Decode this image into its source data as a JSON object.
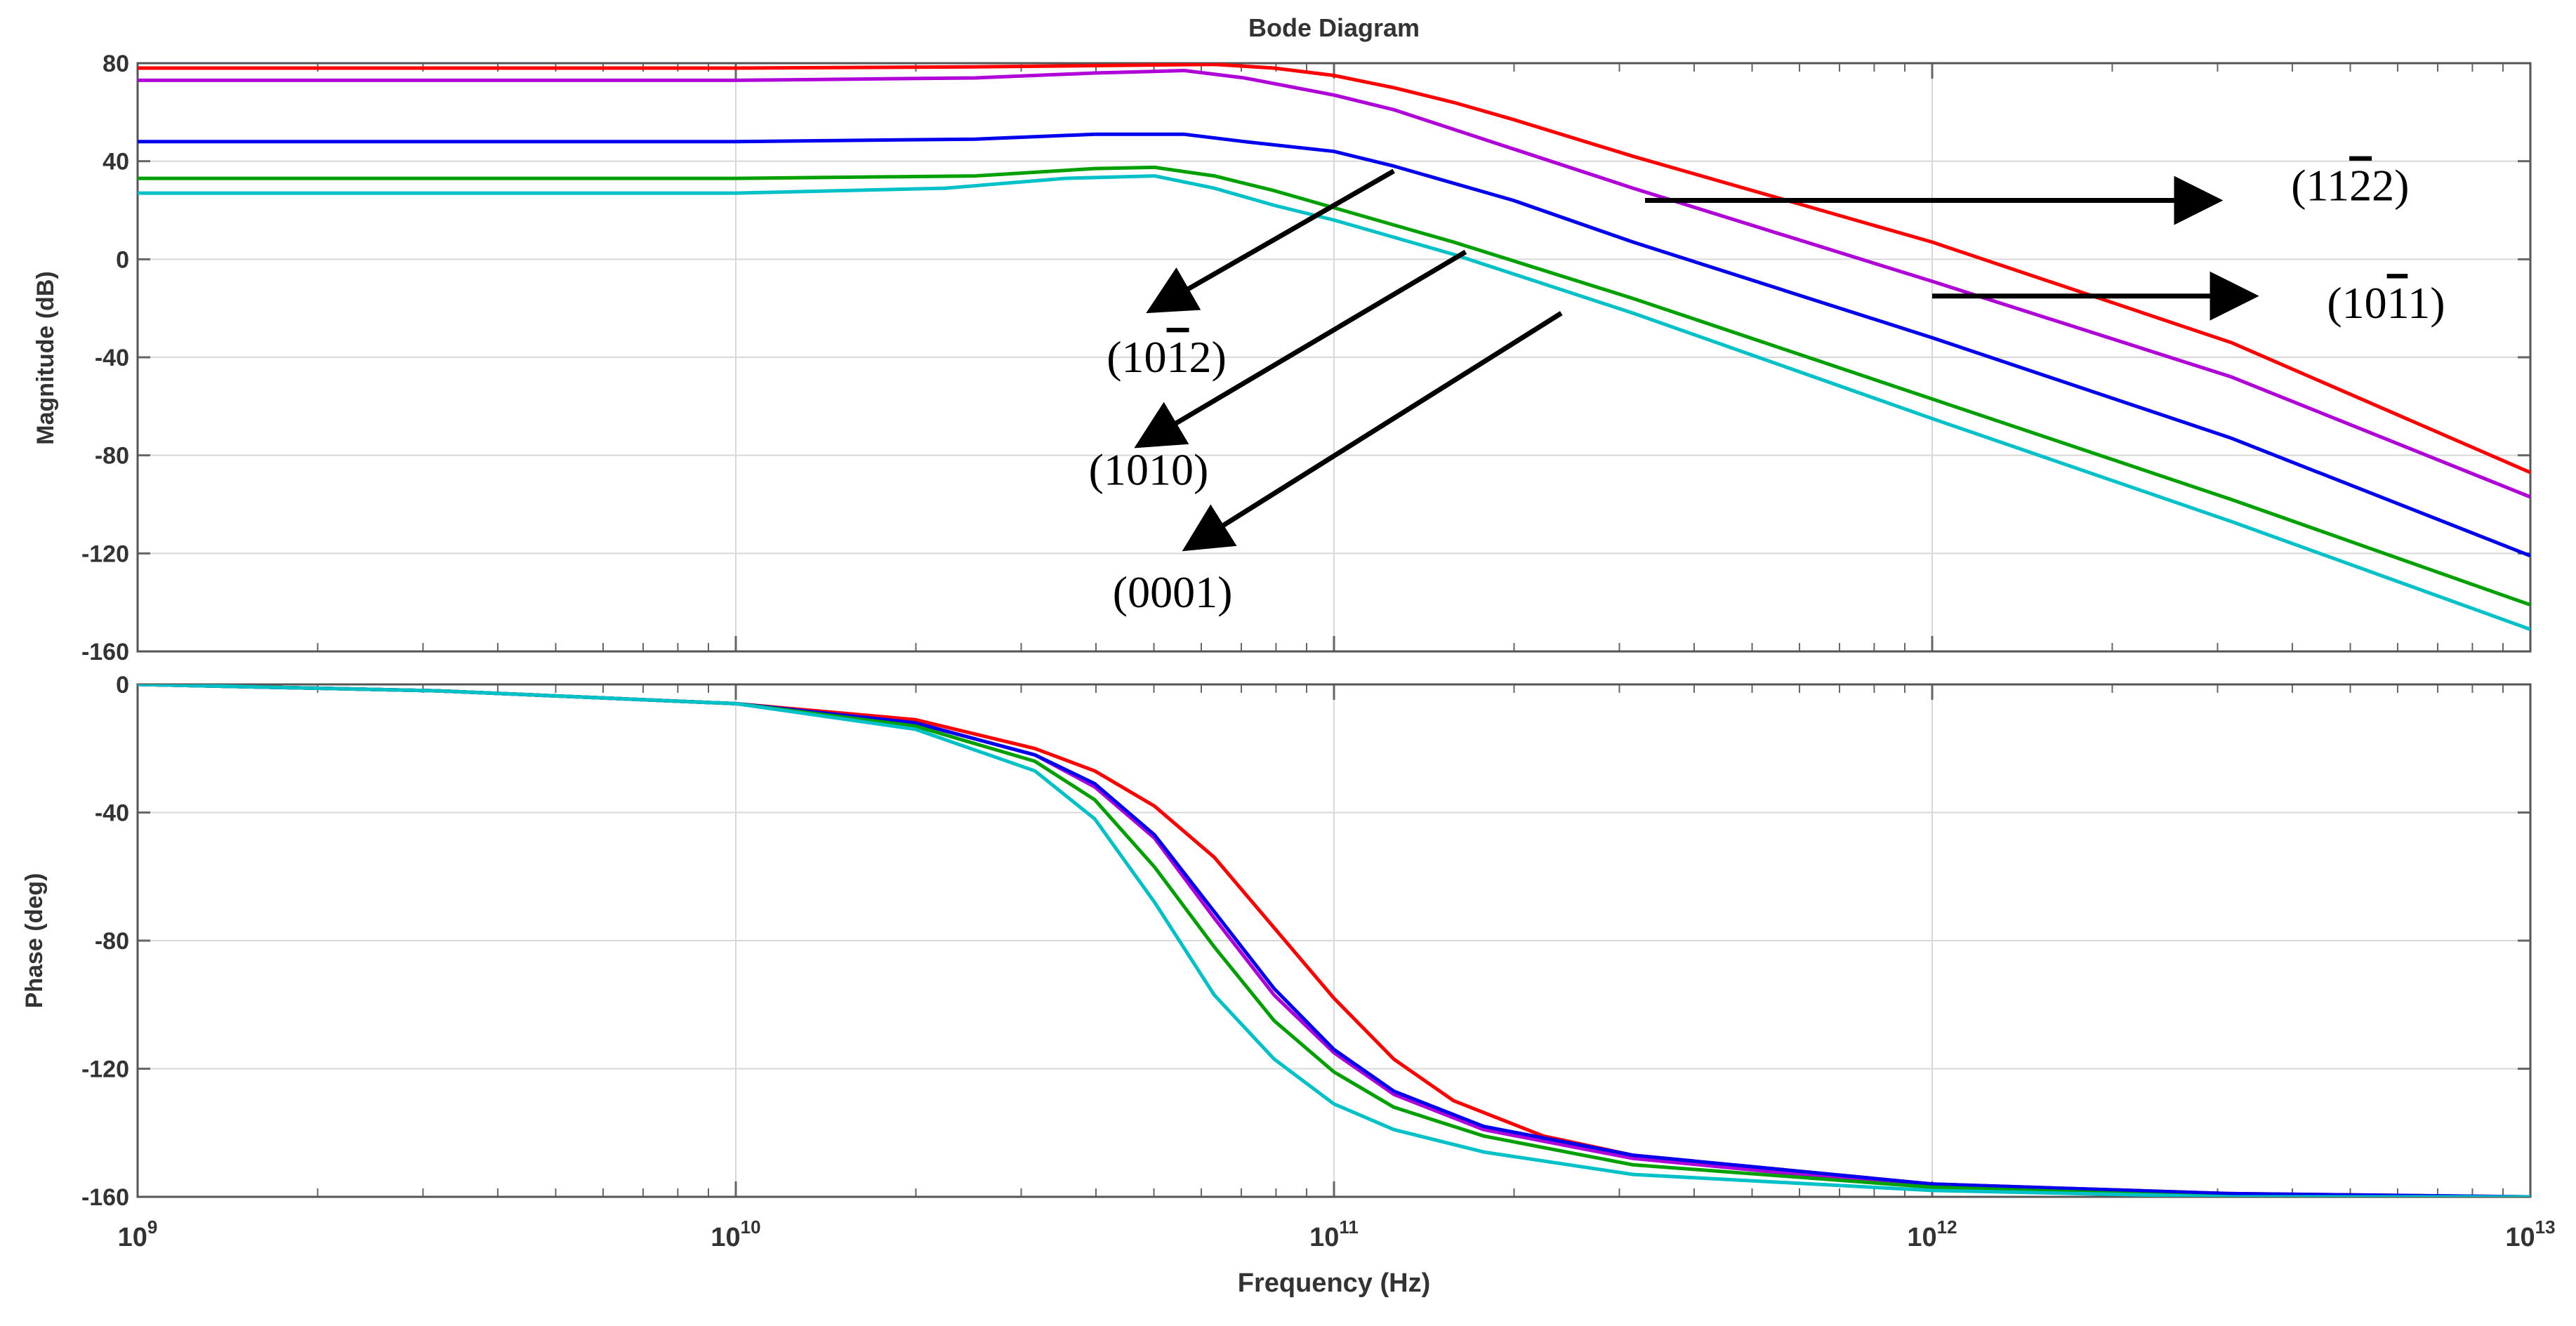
{
  "chart_data": {
    "type": "line",
    "title": "Bode Diagram",
    "xlabel": "Frequency (Hz)",
    "x_scale": "log",
    "xlim_exp": [
      9,
      13
    ],
    "x_ticks": [
      {
        "exp": 9,
        "base": "10",
        "sup": "9"
      },
      {
        "exp": 10,
        "base": "10",
        "sup": "10"
      },
      {
        "exp": 11,
        "base": "10",
        "sup": "11"
      },
      {
        "exp": 12,
        "base": "10",
        "sup": "12"
      },
      {
        "exp": 13,
        "base": "10",
        "sup": "13"
      }
    ],
    "colors": {
      "red": "#ff0000",
      "magenta": "#b000d8",
      "blue": "#0000ee",
      "green": "#00a000",
      "cyan": "#00c0c8",
      "axis_text": "#333333",
      "grid": "#d8d8d8"
    },
    "magnitude": {
      "ylabel": "Magnitude (dB)",
      "ylim": [
        -160,
        80
      ],
      "yticks": [
        80,
        40,
        0,
        -40,
        -80,
        -120,
        -160
      ],
      "series": [
        {
          "name": "red",
          "color": "#ff0000",
          "points": [
            [
              9,
              78
            ],
            [
              10,
              78
            ],
            [
              10.4,
              78.5
            ],
            [
              10.6,
              79
            ],
            [
              10.8,
              79.5
            ],
            [
              10.9,
              78
            ],
            [
              11,
              75
            ],
            [
              11.1,
              70
            ],
            [
              11.2,
              64
            ],
            [
              11.3,
              57
            ],
            [
              11.5,
              42
            ],
            [
              12,
              7
            ],
            [
              12.5,
              -34
            ],
            [
              13,
              -87
            ]
          ]
        },
        {
          "name": "magenta",
          "color": "#b000d8",
          "points": [
            [
              9,
              73
            ],
            [
              10,
              73
            ],
            [
              10.4,
              74
            ],
            [
              10.6,
              76
            ],
            [
              10.75,
              77
            ],
            [
              10.85,
              74
            ],
            [
              11,
              67
            ],
            [
              11.1,
              61
            ],
            [
              11.3,
              45
            ],
            [
              11.5,
              29
            ],
            [
              12,
              -9
            ],
            [
              12.5,
              -48
            ],
            [
              13,
              -97
            ]
          ]
        },
        {
          "name": "blue",
          "color": "#0000ee",
          "points": [
            [
              9,
              48
            ],
            [
              10,
              48
            ],
            [
              10.4,
              49
            ],
            [
              10.6,
              51
            ],
            [
              10.75,
              51
            ],
            [
              10.85,
              48
            ],
            [
              11,
              44
            ],
            [
              11.1,
              38
            ],
            [
              11.3,
              24
            ],
            [
              11.5,
              7
            ],
            [
              12,
              -32
            ],
            [
              12.5,
              -73
            ],
            [
              13,
              -121
            ]
          ]
        },
        {
          "name": "green",
          "color": "#00a000",
          "points": [
            [
              9,
              33
            ],
            [
              10,
              33
            ],
            [
              10.4,
              34
            ],
            [
              10.6,
              37
            ],
            [
              10.7,
              37.5
            ],
            [
              10.8,
              34
            ],
            [
              10.9,
              28
            ],
            [
              11,
              21
            ],
            [
              11.2,
              7
            ],
            [
              11.5,
              -16
            ],
            [
              12,
              -57
            ],
            [
              12.5,
              -98
            ],
            [
              13,
              -141
            ]
          ]
        },
        {
          "name": "cyan",
          "color": "#00c0c8",
          "points": [
            [
              9,
              27
            ],
            [
              10,
              27
            ],
            [
              10.35,
              29
            ],
            [
              10.55,
              33
            ],
            [
              10.7,
              34
            ],
            [
              10.8,
              29
            ],
            [
              10.9,
              22
            ],
            [
              11,
              16
            ],
            [
              11.2,
              2
            ],
            [
              11.5,
              -22
            ],
            [
              12,
              -65
            ],
            [
              12.5,
              -107
            ],
            [
              13,
              -151
            ]
          ]
        }
      ]
    },
    "phase": {
      "ylabel": "Phase (deg)",
      "ylim": [
        -160,
        0
      ],
      "yticks": [
        0,
        -40,
        -80,
        -120,
        -160
      ],
      "series": [
        {
          "name": "red",
          "color": "#ff0000",
          "points": [
            [
              9,
              0
            ],
            [
              9.5,
              -2
            ],
            [
              10,
              -6
            ],
            [
              10.3,
              -11
            ],
            [
              10.5,
              -20
            ],
            [
              10.6,
              -27
            ],
            [
              10.7,
              -38
            ],
            [
              10.8,
              -54
            ],
            [
              10.9,
              -76
            ],
            [
              11,
              -98
            ],
            [
              11.1,
              -117
            ],
            [
              11.2,
              -130
            ],
            [
              11.35,
              -141
            ],
            [
              11.5,
              -147
            ],
            [
              12,
              -156
            ],
            [
              12.5,
              -159
            ],
            [
              13,
              -160
            ]
          ]
        },
        {
          "name": "magenta",
          "color": "#b000d8",
          "points": [
            [
              9,
              0
            ],
            [
              9.5,
              -2
            ],
            [
              10,
              -6
            ],
            [
              10.3,
              -12
            ],
            [
              10.5,
              -22
            ],
            [
              10.6,
              -32
            ],
            [
              10.7,
              -48
            ],
            [
              10.8,
              -73
            ],
            [
              10.9,
              -97
            ],
            [
              11,
              -115
            ],
            [
              11.1,
              -128
            ],
            [
              11.25,
              -139
            ],
            [
              11.5,
              -148
            ],
            [
              12,
              -157
            ],
            [
              12.5,
              -160
            ],
            [
              13,
              -160
            ]
          ]
        },
        {
          "name": "blue",
          "color": "#0000ee",
          "points": [
            [
              9,
              0
            ],
            [
              9.5,
              -2
            ],
            [
              10,
              -6
            ],
            [
              10.3,
              -12
            ],
            [
              10.5,
              -22
            ],
            [
              10.6,
              -31
            ],
            [
              10.7,
              -47
            ],
            [
              10.8,
              -71
            ],
            [
              10.9,
              -95
            ],
            [
              11,
              -114
            ],
            [
              11.1,
              -127
            ],
            [
              11.25,
              -138
            ],
            [
              11.5,
              -147
            ],
            [
              12,
              -156
            ],
            [
              12.5,
              -159
            ],
            [
              13,
              -160
            ]
          ]
        },
        {
          "name": "green",
          "color": "#00a000",
          "points": [
            [
              9,
              0
            ],
            [
              9.5,
              -2
            ],
            [
              10,
              -6
            ],
            [
              10.3,
              -13
            ],
            [
              10.5,
              -24
            ],
            [
              10.6,
              -36
            ],
            [
              10.7,
              -57
            ],
            [
              10.8,
              -82
            ],
            [
              10.9,
              -105
            ],
            [
              11,
              -121
            ],
            [
              11.1,
              -132
            ],
            [
              11.25,
              -141
            ],
            [
              11.5,
              -150
            ],
            [
              12,
              -157
            ],
            [
              12.5,
              -160
            ],
            [
              13,
              -160
            ]
          ]
        },
        {
          "name": "cyan",
          "color": "#00c0c8",
          "points": [
            [
              9,
              0
            ],
            [
              9.5,
              -2
            ],
            [
              10,
              -6
            ],
            [
              10.3,
              -14
            ],
            [
              10.5,
              -27
            ],
            [
              10.6,
              -42
            ],
            [
              10.7,
              -68
            ],
            [
              10.8,
              -97
            ],
            [
              10.9,
              -117
            ],
            [
              11,
              -131
            ],
            [
              11.1,
              -139
            ],
            [
              11.25,
              -146
            ],
            [
              11.5,
              -153
            ],
            [
              12,
              -158
            ],
            [
              12.5,
              -160
            ],
            [
              13,
              -160
            ]
          ]
        }
      ]
    },
    "annotations": [
      {
        "label": "(1122)",
        "parts": [
          {
            "t": "(11"
          },
          {
            "t": "2",
            "bar": true
          },
          {
            "t": "2)"
          }
        ],
        "text_at": [
          12.6,
          24
        ],
        "arrow_from": [
          11.52,
          24
        ],
        "arrow_to": [
          12.47,
          24
        ],
        "color": "#000000"
      },
      {
        "label": "(1011)",
        "parts": [
          {
            "t": "(10"
          },
          {
            "t": "1",
            "bar": true
          },
          {
            "t": "1)"
          }
        ],
        "text_at": [
          12.66,
          -24
        ],
        "arrow_from": [
          12,
          -15
        ],
        "arrow_to": [
          12.53,
          -15
        ],
        "color": "#000000"
      },
      {
        "label": "(1012)",
        "parts": [
          {
            "t": "(10"
          },
          {
            "t": "1",
            "bar": true
          },
          {
            "t": "2)"
          }
        ],
        "text_at": [
          10.62,
          -46
        ],
        "arrow_from": [
          11.1,
          36
        ],
        "arrow_to": [
          10.7,
          -20
        ],
        "color": "#000000"
      },
      {
        "label": "(1010)",
        "parts": [
          {
            "t": "(10"
          },
          {
            "t": "1",
            "bar": true
          },
          {
            "t": "0)"
          }
        ],
        "text_at": [
          10.59,
          -92
        ],
        "arrow_from": [
          11.22,
          3
        ],
        "arrow_to": [
          10.68,
          -75
        ],
        "color": "#000000"
      },
      {
        "label": "(0001)",
        "parts": [
          {
            "t": "(0001)"
          }
        ],
        "text_at": [
          10.63,
          -142
        ],
        "arrow_from": [
          11.38,
          -22
        ],
        "arrow_to": [
          10.76,
          -117
        ],
        "color": "#000000"
      }
    ]
  }
}
